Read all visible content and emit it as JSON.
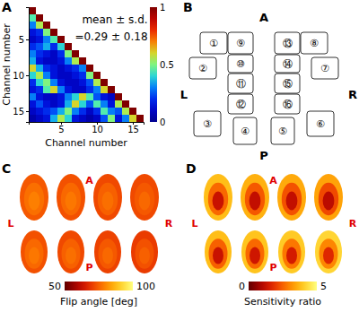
{
  "chart_data": [
    {
      "type": "heatmap",
      "title": "A",
      "xlabel": "Channel number",
      "ylabel": "Channel number",
      "xlim": [
        0.5,
        16.5
      ],
      "ylim": [
        0.5,
        16.5
      ],
      "xticks": [
        5,
        10,
        15
      ],
      "yticks": [
        5,
        10,
        15
      ],
      "annotations": [
        "mean ± s.d.",
        "=0.29 ± 0.18"
      ],
      "cells": [
        [
          1
        ],
        [
          0.45,
          1
        ],
        [
          0.3,
          0.55,
          1
        ],
        [
          0.15,
          0.2,
          0.5,
          1
        ],
        [
          0.1,
          0.15,
          0.3,
          0.45,
          1
        ],
        [
          0.2,
          0.25,
          0.35,
          0.2,
          0.4,
          1
        ],
        [
          0.3,
          0.2,
          0.15,
          0.1,
          0.2,
          0.5,
          1
        ],
        [
          0.35,
          0.15,
          0.1,
          0.1,
          0.15,
          0.3,
          0.55,
          1
        ],
        [
          0.6,
          0.35,
          0.2,
          0.15,
          0.1,
          0.15,
          0.2,
          0.3,
          1
        ],
        [
          0.4,
          0.55,
          0.3,
          0.15,
          0.1,
          0.1,
          0.15,
          0.2,
          0.5,
          1
        ],
        [
          0.2,
          0.4,
          0.5,
          0.3,
          0.15,
          0.1,
          0.1,
          0.15,
          0.25,
          0.55,
          1
        ],
        [
          0.15,
          0.2,
          0.45,
          0.6,
          0.3,
          0.15,
          0.1,
          0.1,
          0.2,
          0.3,
          0.6,
          1
        ],
        [
          0.3,
          0.15,
          0.1,
          0.1,
          0.15,
          0.3,
          0.4,
          0.6,
          0.45,
          0.25,
          0.15,
          0.1,
          1
        ],
        [
          0.15,
          0.25,
          0.15,
          0.1,
          0.15,
          0.35,
          0.6,
          0.4,
          0.25,
          0.45,
          0.3,
          0.15,
          0.55,
          1
        ],
        [
          0.1,
          0.15,
          0.2,
          0.25,
          0.35,
          0.5,
          0.3,
          0.2,
          0.1,
          0.2,
          0.45,
          0.3,
          0.25,
          0.55,
          1
        ],
        [
          0.05,
          0.1,
          0.15,
          0.35,
          0.55,
          0.4,
          0.15,
          0.1,
          0.05,
          0.1,
          0.25,
          0.5,
          0.15,
          0.3,
          0.6,
          1
        ]
      ],
      "colorbar": {
        "range": [
          0,
          1
        ],
        "ticks": [
          0,
          0.5,
          1
        ]
      }
    },
    {
      "type": "image",
      "title": "C",
      "orientation_labels": [
        "A",
        "L",
        "R",
        "P"
      ],
      "slices": [
        [
          74,
          77,
          79
        ],
        [
          73,
          76,
          78
        ],
        [
          72,
          75,
          77
        ],
        [
          72,
          74,
          76
        ],
        [
          73,
          76,
          78
        ],
        [
          72,
          75,
          77
        ],
        [
          71,
          74,
          76
        ],
        [
          70,
          73,
          75
        ]
      ],
      "colorbar": {
        "range": [
          50,
          100
        ],
        "ticks": [
          50,
          100
        ],
        "label": "Flip angle [deg]"
      }
    },
    {
      "type": "image",
      "title": "D",
      "orientation_labels": [
        "A",
        "L",
        "R",
        "P"
      ],
      "slices": [
        [
          3.8,
          2.6,
          1.3
        ],
        [
          3.6,
          2.4,
          1.2
        ],
        [
          3.5,
          2.3,
          1.2
        ],
        [
          3.4,
          2.2,
          1.1
        ],
        [
          3.8,
          2.5,
          1.3
        ],
        [
          3.9,
          2.6,
          1.4
        ],
        [
          4.0,
          2.8,
          1.5
        ],
        [
          4.2,
          3.0,
          1.7
        ]
      ],
      "colorbar": {
        "range": [
          0,
          5
        ],
        "ticks": [
          0,
          5
        ],
        "label": "Sensitivity ratio"
      }
    }
  ],
  "diagram": {
    "title": "B",
    "orientation_labels": [
      "A",
      "L",
      "R",
      "P"
    ],
    "elements": [
      "①",
      "②",
      "③",
      "④",
      "⑤",
      "⑥",
      "⑦",
      "⑧",
      "⑨",
      "⑩",
      "⑪",
      "⑫",
      "⑬",
      "⑭",
      "⑮",
      "⑯"
    ]
  }
}
